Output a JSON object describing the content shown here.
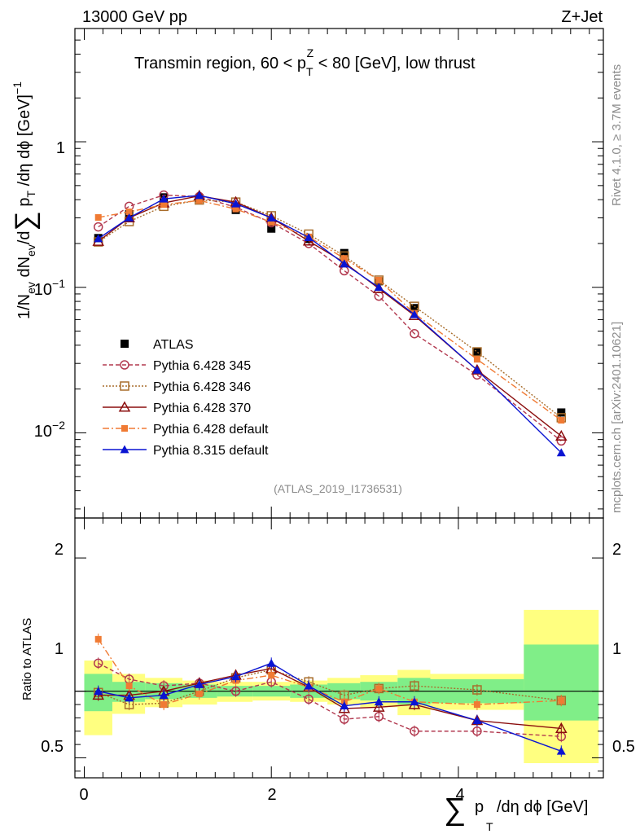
{
  "header": {
    "left": "13000 GeV pp",
    "right": "Z+Jet"
  },
  "side": {
    "rivet": "Rivet 4.1.0, ≥ 3.7M events",
    "mcplots": "mcplots.cern.ch [arXiv:2401.10621]"
  },
  "plot_id": "(ATLAS_2019_I1736531)",
  "chart_data": [
    {
      "type": "line",
      "title": "Transmin region, 60 < p_T^Z < 80 [GeV], low thrust",
      "ylabel": "1/N_ev dN_ev/d∑p_T/dη dφ [GeV]^-1",
      "xlabel": "∑ p_T/dη dφ [GeV]",
      "yscale": "log",
      "xlim": [
        -0.1,
        5.55
      ],
      "ylim": [
        0.0026,
        6.0
      ],
      "y_tick_labels": [
        "10^-2",
        "10^-1",
        "1"
      ],
      "x": [
        0.15,
        0.48,
        0.85,
        1.23,
        1.62,
        2.0,
        2.4,
        2.78,
        3.15,
        3.53,
        4.2,
        5.1
      ],
      "series": [
        {
          "name": "ATLAS",
          "color": "#000000",
          "values": [
            0.218,
            0.318,
            0.415,
            0.41,
            0.34,
            0.253,
            0.215,
            0.172,
            0.11,
            0.072,
            0.036,
            0.0138
          ]
        },
        {
          "name": "Pythia 6.428 345",
          "color": "#b2394f",
          "values": [
            0.26,
            0.36,
            0.43,
            0.42,
            0.355,
            0.278,
            0.2,
            0.13,
            0.087,
            0.048,
            0.025,
            0.0088
          ]
        },
        {
          "name": "Pythia 6.428 346",
          "color": "#a86d2b",
          "values": [
            0.205,
            0.283,
            0.36,
            0.398,
            0.385,
            0.31,
            0.232,
            0.164,
            0.112,
            0.074,
            0.036,
            0.0127
          ]
        },
        {
          "name": "Pythia 6.428 370",
          "color": "#8b0e0e",
          "values": [
            0.207,
            0.3,
            0.38,
            0.425,
            0.385,
            0.3,
            0.208,
            0.148,
            0.098,
            0.064,
            0.027,
            0.0095
          ]
        },
        {
          "name": "Pythia 6.428 default",
          "color": "#f07a33",
          "values": [
            0.302,
            0.33,
            0.37,
            0.395,
            0.345,
            0.28,
            0.222,
            0.158,
            0.112,
            0.066,
            0.032,
            0.0122
          ]
        },
        {
          "name": "Pythia 8.315 default",
          "color": "#0a14d2",
          "values": [
            0.216,
            0.3,
            0.405,
            0.428,
            0.375,
            0.3,
            0.22,
            0.145,
            0.1,
            0.065,
            0.027,
            0.0073
          ]
        }
      ]
    },
    {
      "type": "line",
      "ylabel": "Ratio to ATLAS",
      "xlim": [
        -0.1,
        5.55
      ],
      "ylim": [
        0.35,
        2.3
      ],
      "y_ticks": [
        0.5,
        1,
        2
      ],
      "x_ticks": [
        0,
        2,
        4
      ],
      "x": [
        0.15,
        0.48,
        0.85,
        1.23,
        1.62,
        2.0,
        2.4,
        2.78,
        3.15,
        3.53,
        4.2,
        5.1
      ],
      "bin_edges": [
        0.0,
        0.3,
        0.65,
        1.05,
        1.42,
        1.8,
        2.2,
        2.6,
        2.95,
        3.35,
        3.7,
        4.7,
        5.5
      ],
      "band_yellow": [
        [
          0.67,
          1.23
        ],
        [
          0.83,
          1.13
        ],
        [
          0.88,
          1.1
        ],
        [
          0.9,
          1.08
        ],
        [
          0.92,
          1.07
        ],
        [
          0.93,
          1.07
        ],
        [
          0.92,
          1.08
        ],
        [
          0.9,
          1.1
        ],
        [
          0.88,
          1.12
        ],
        [
          0.82,
          1.16
        ],
        [
          0.86,
          1.13
        ],
        [
          0.46,
          1.61
        ]
      ],
      "band_green": [
        [
          0.85,
          1.13
        ],
        [
          0.92,
          1.07
        ],
        [
          0.94,
          1.06
        ],
        [
          0.95,
          1.05
        ],
        [
          0.96,
          1.04
        ],
        [
          0.96,
          1.04
        ],
        [
          0.95,
          1.05
        ],
        [
          0.94,
          1.06
        ],
        [
          0.93,
          1.07
        ],
        [
          0.9,
          1.1
        ],
        [
          0.91,
          1.09
        ],
        [
          0.78,
          1.35
        ]
      ],
      "series": [
        {
          "name": "Pythia 6.428 345",
          "color": "#b2394f",
          "values": [
            1.21,
            1.09,
            1.04,
            1.06,
            1.0,
            1.07,
            0.94,
            0.79,
            0.81,
            0.7,
            0.7,
            0.66
          ]
        },
        {
          "name": "Pythia 6.428 346",
          "color": "#a86d2b",
          "values": [
            0.99,
            0.9,
            0.91,
            1.0,
            1.1,
            1.16,
            1.07,
            0.97,
            1.02,
            1.04,
            1.01,
            0.93
          ]
        },
        {
          "name": "Pythia 6.428 370",
          "color": "#8b0e0e",
          "values": [
            0.97,
            0.97,
            1.0,
            1.06,
            1.12,
            1.17,
            1.03,
            0.87,
            0.88,
            0.9,
            0.78,
            0.72
          ]
        },
        {
          "name": "Pythia 6.428 default",
          "color": "#f07a33",
          "values": [
            1.39,
            1.04,
            0.9,
            0.98,
            1.08,
            1.12,
            1.03,
            0.92,
            1.02,
            0.92,
            0.9,
            0.93
          ]
        },
        {
          "name": "Pythia 8.315 default",
          "color": "#0a14d2",
          "values": [
            1.0,
            0.95,
            0.97,
            1.05,
            1.11,
            1.21,
            1.04,
            0.89,
            0.92,
            0.92,
            0.78,
            0.55
          ]
        }
      ]
    }
  ]
}
